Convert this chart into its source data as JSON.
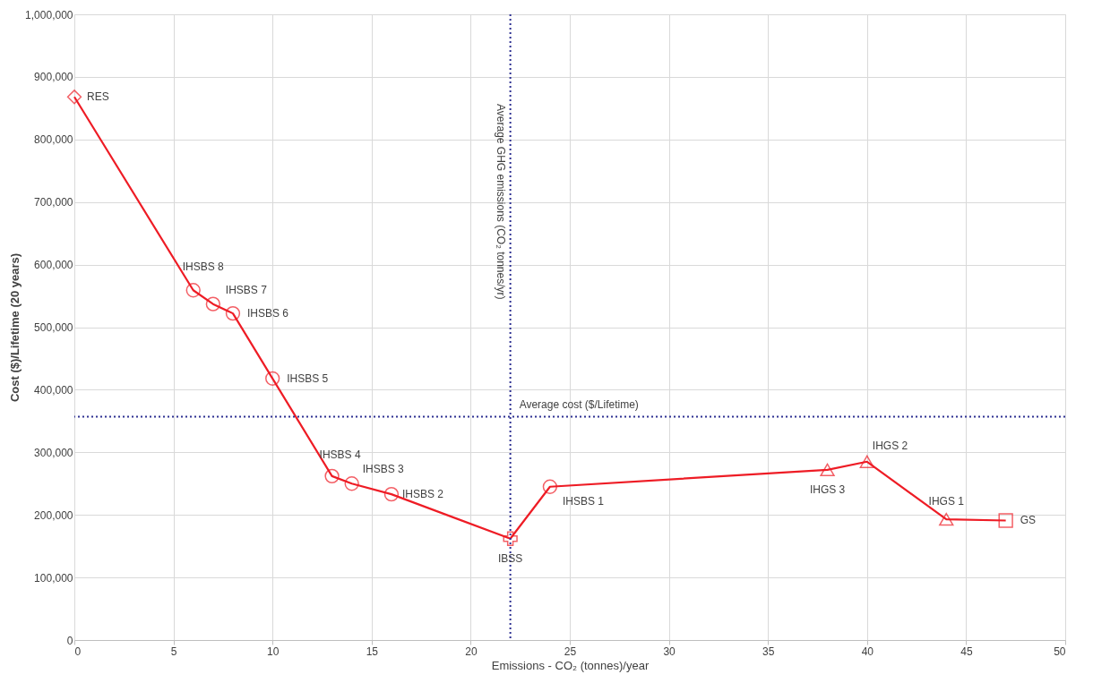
{
  "chart_data": {
    "type": "line",
    "xlabel": "Emissions - CO₂ (tonnes)/year",
    "ylabel": "Cost ($)/Lifetime (20 years)",
    "xlim": [
      0,
      50
    ],
    "xticks": [
      0,
      5,
      10,
      15,
      20,
      25,
      30,
      35,
      40,
      45,
      50
    ],
    "ylim": [
      0,
      1000000
    ],
    "yticks": [
      {
        "value": 0,
        "label": "0"
      },
      {
        "value": 100000,
        "label": "100,000"
      },
      {
        "value": 200000,
        "label": "200,000"
      },
      {
        "value": 300000,
        "label": "300,000"
      },
      {
        "value": 400000,
        "label": "400,000"
      },
      {
        "value": 500000,
        "label": "500,000"
      },
      {
        "value": 600000,
        "label": "600,000"
      },
      {
        "value": 700000,
        "label": "700,000"
      },
      {
        "value": 800000,
        "label": "800,000"
      },
      {
        "value": 900000,
        "label": "900,000"
      },
      {
        "value": 1000000,
        "label": "1,000,000"
      }
    ],
    "grid": true,
    "series": [
      {
        "type": "line",
        "marker": "none",
        "line_style": "solid",
        "color": "#ee1c25",
        "x": [
          0,
          6,
          7,
          8,
          10,
          13,
          14,
          16,
          22,
          24,
          38,
          40,
          44,
          47
        ],
        "values": [
          868000,
          559000,
          537000,
          522000,
          418000,
          262000,
          250000,
          233000,
          162000,
          245000,
          272000,
          285000,
          193000,
          191000
        ]
      },
      {
        "type": "scatter",
        "marker": "diamond",
        "color": "#ee1c25",
        "x": [
          0
        ],
        "values": [
          868000
        ]
      },
      {
        "type": "scatter",
        "marker": "circle",
        "color": "#ee1c25",
        "x": [
          6,
          7,
          8,
          10,
          13,
          14,
          16,
          24
        ],
        "values": [
          559000,
          537000,
          522000,
          418000,
          262000,
          250000,
          233000,
          245000
        ]
      },
      {
        "type": "scatter",
        "marker": "cross",
        "color": "#ee1c25",
        "x": [
          22
        ],
        "values": [
          162000
        ]
      },
      {
        "type": "scatter",
        "marker": "triangle",
        "color": "#ee1c25",
        "x": [
          38,
          40,
          44
        ],
        "values": [
          272000,
          285000,
          193000
        ]
      },
      {
        "type": "scatter",
        "marker": "square",
        "color": "#ee1c25",
        "x": [
          47
        ],
        "values": [
          191000
        ]
      }
    ],
    "ref_lines": [
      {
        "axis": "x",
        "value": 22,
        "label": "Average  GHG  emissions (CO₂ tonnes/yr)",
        "color": "#2e3192",
        "line_style": "dotted"
      },
      {
        "axis": "y",
        "value": 357000,
        "label": "Average cost ($/Lifetime)",
        "color": "#2e3192",
        "line_style": "dotted"
      }
    ],
    "annotations": [
      {
        "text": "RES",
        "x": 0,
        "y": 868000
      },
      {
        "text": "IHSBS 8",
        "x": 6,
        "y": 559000
      },
      {
        "text": "IHSBS 7",
        "x": 7,
        "y": 537000
      },
      {
        "text": "IHSBS 6",
        "x": 8,
        "y": 522000
      },
      {
        "text": "IHSBS 5",
        "x": 10,
        "y": 418000
      },
      {
        "text": "IHSBS 4",
        "x": 13,
        "y": 262000
      },
      {
        "text": "IHSBS 3",
        "x": 14,
        "y": 250000
      },
      {
        "text": "IHSBS 2",
        "x": 16,
        "y": 233000
      },
      {
        "text": "IBSS",
        "x": 22,
        "y": 162000
      },
      {
        "text": "IHSBS 1",
        "x": 24,
        "y": 245000
      },
      {
        "text": "IHGS 3",
        "x": 38,
        "y": 272000
      },
      {
        "text": "IHGS 2",
        "x": 40,
        "y": 285000
      },
      {
        "text": "IHGS 1",
        "x": 44,
        "y": 193000
      },
      {
        "text": "GS",
        "x": 47,
        "y": 191000
      }
    ]
  }
}
